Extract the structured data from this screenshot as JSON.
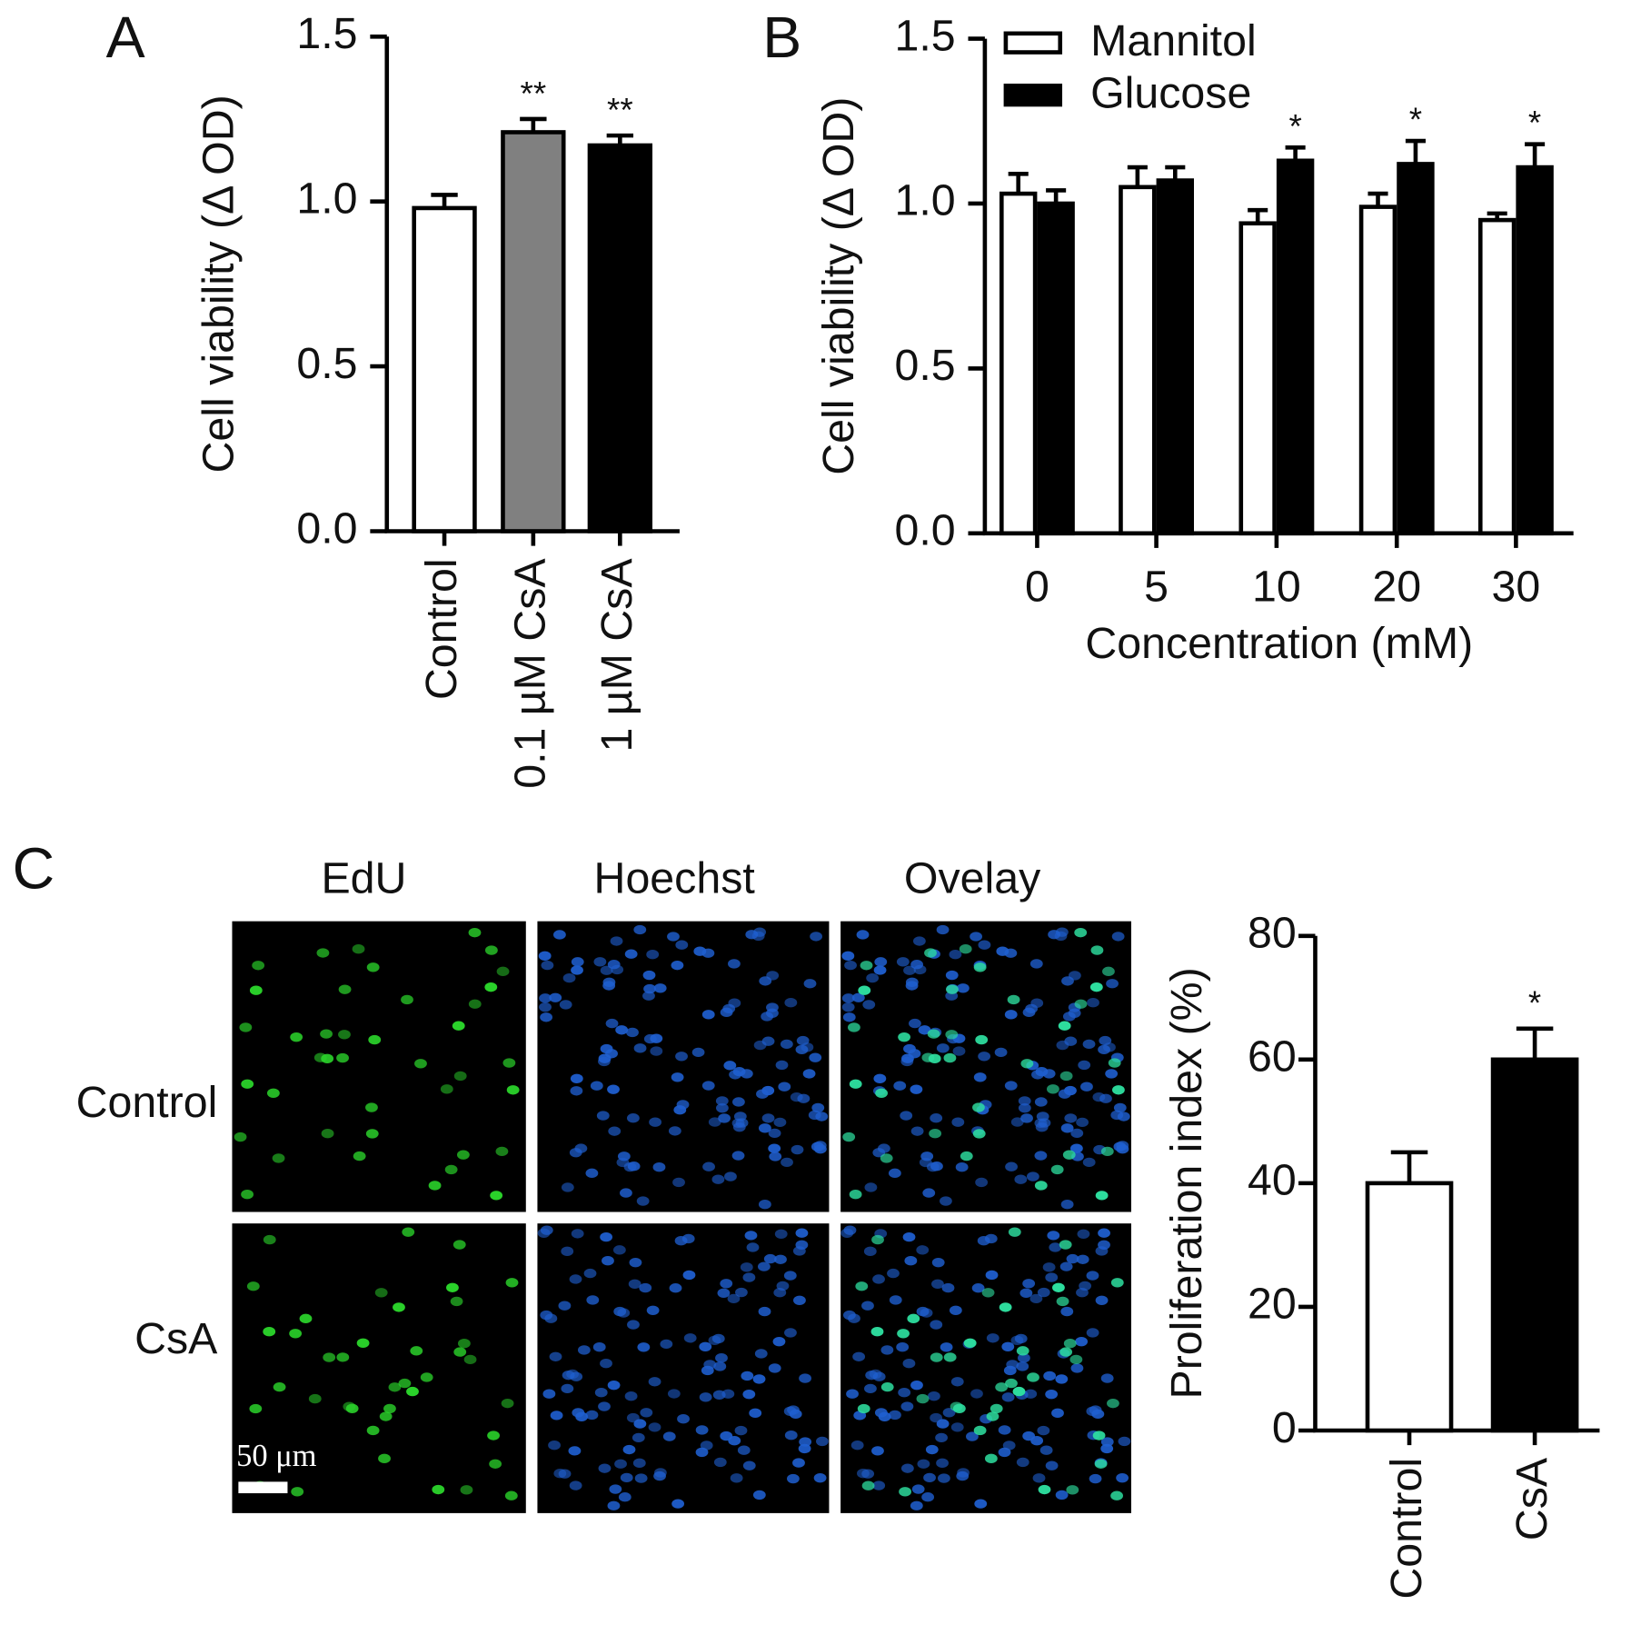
{
  "chart_data": [
    {
      "type": "bar",
      "panel_label": "A",
      "ylabel": "Cell viability (Δ OD)",
      "categories": [
        "Control",
        "0.1 µM CsA",
        "1 µM CsA"
      ],
      "values": [
        0.98,
        1.21,
        1.17
      ],
      "errors": [
        0.04,
        0.04,
        0.03
      ],
      "colors": [
        "#ffffff",
        "#808080",
        "#000000"
      ],
      "annotations": [
        null,
        "**",
        "**"
      ],
      "ylim": [
        0,
        1.5
      ],
      "yticks": [
        {
          "value": 0,
          "label": "0.0"
        },
        0.5,
        {
          "value": 1,
          "label": "1.0"
        },
        1.5
      ]
    },
    {
      "type": "grouped_bar",
      "panel_label": "B",
      "ylabel": "Cell viability (Δ OD)",
      "xlabel": "Concentration (mM)",
      "categories": [
        "0",
        "5",
        "10",
        "20",
        "30"
      ],
      "series": [
        {
          "name": "Mannitol",
          "color": "#ffffff",
          "values": [
            1.03,
            1.05,
            0.94,
            0.99,
            0.95
          ],
          "errors": [
            0.06,
            0.06,
            0.04,
            0.04,
            0.02
          ],
          "annotations": [
            null,
            null,
            null,
            null,
            null
          ]
        },
        {
          "name": "Glucose",
          "color": "#000000",
          "values": [
            1.0,
            1.07,
            1.13,
            1.12,
            1.11
          ],
          "errors": [
            0.04,
            0.04,
            0.04,
            0.07,
            0.07
          ],
          "annotations": [
            null,
            null,
            "*",
            "*",
            "*"
          ]
        }
      ],
      "legend": "upper left",
      "ylim": [
        0,
        1.5
      ],
      "yticks": [
        {
          "value": 0,
          "label": "0.0"
        },
        0.5,
        {
          "value": 1,
          "label": "1.0"
        },
        1.5
      ]
    },
    {
      "type": "bar",
      "panel_label": "C",
      "ylabel": "Proliferation index (%)",
      "categories": [
        "Control",
        "CsA"
      ],
      "values": [
        40,
        60
      ],
      "errors": [
        5,
        5
      ],
      "colors": [
        "#ffffff",
        "#000000"
      ],
      "annotations": [
        null,
        "*"
      ],
      "ylim": [
        0,
        80
      ],
      "yticks": [
        0,
        20,
        40,
        60,
        80
      ]
    }
  ],
  "microscopy": {
    "columns": [
      "EdU",
      "Hoechst",
      "Ovelay"
    ],
    "rows": [
      "Control",
      "CsA"
    ],
    "scale_bar": "50 μm"
  }
}
